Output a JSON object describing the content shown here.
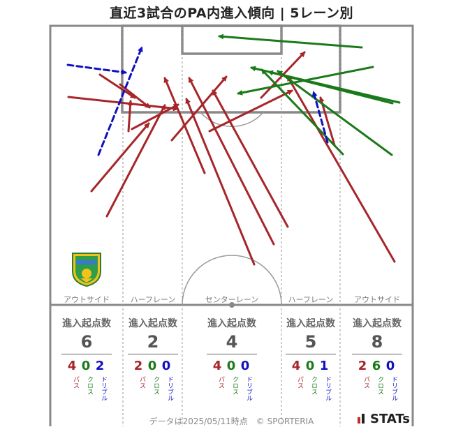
{
  "title": "直近3試合のPA内進入傾向 | 5レーン別",
  "lanes": [
    {
      "label": "アウトサイド",
      "head": "進入起点数",
      "total": "6",
      "pass": "4",
      "cross": "0",
      "dribble": "2"
    },
    {
      "label": "ハーフレーン",
      "head": "進入起点数",
      "total": "2",
      "pass": "2",
      "cross": "0",
      "dribble": "0"
    },
    {
      "label": "センターレーン",
      "head": "進入起点数",
      "total": "4",
      "pass": "4",
      "cross": "0",
      "dribble": "0"
    },
    {
      "label": "ハーフレーン",
      "head": "進入起点数",
      "total": "5",
      "pass": "4",
      "cross": "0",
      "dribble": "1"
    },
    {
      "label": "アウトサイド",
      "head": "進入起点数",
      "total": "8",
      "pass": "2",
      "cross": "6",
      "dribble": "0"
    }
  ],
  "breakdown_labels": {
    "pass": "パス",
    "cross": "クロス",
    "dribble": "ドリブル"
  },
  "colors": {
    "pass": "#a6262a",
    "cross": "#1a7a1a",
    "dribble": "#1010c0"
  },
  "footer": "データは2025/05/11時点　© SPORTERIA",
  "brand": "STATs",
  "chart_data": {
    "type": "scatter",
    "arrows": [
      {
        "kind": "pass",
        "from": [
          153,
          310
        ],
        "to": [
          236,
          151
        ]
      },
      {
        "kind": "pass",
        "from": [
          131,
          274
        ],
        "to": [
          213,
          177
        ]
      },
      {
        "kind": "pass",
        "from": [
          98,
          139
        ],
        "to": [
          254,
          156
        ]
      },
      {
        "kind": "pass",
        "from": [
          172,
          121
        ],
        "to": [
          214,
          154
        ]
      },
      {
        "kind": "pass",
        "from": [
          143,
          107
        ],
        "to": [
          193,
          140
        ]
      },
      {
        "kind": "pass",
        "from": [
          184,
          188
        ],
        "to": [
          187,
          145
        ]
      },
      {
        "kind": "pass",
        "from": [
          189,
          185
        ],
        "to": [
          255,
          150
        ]
      },
      {
        "kind": "pass",
        "from": [
          246,
          201
        ],
        "to": [
          324,
          110
        ]
      },
      {
        "kind": "pass",
        "from": [
          293,
          248
        ],
        "to": [
          236,
          112
        ]
      },
      {
        "kind": "pass",
        "from": [
          364,
          379
        ],
        "to": [
          267,
          142
        ]
      },
      {
        "kind": "pass",
        "from": [
          392,
          350
        ],
        "to": [
          271,
          112
        ]
      },
      {
        "kind": "pass",
        "from": [
          412,
          325
        ],
        "to": [
          305,
          130
        ]
      },
      {
        "kind": "pass",
        "from": [
          374,
          140
        ],
        "to": [
          436,
          75
        ]
      },
      {
        "kind": "pass",
        "from": [
          565,
          375
        ],
        "to": [
          412,
          110
        ]
      },
      {
        "kind": "pass",
        "from": [
          479,
          208
        ],
        "to": [
          459,
          140
        ]
      },
      {
        "kind": "pass",
        "from": [
          300,
          188
        ],
        "to": [
          418,
          130
        ]
      },
      {
        "kind": "cross",
        "from": [
          518,
          68
        ],
        "to": [
          314,
          52
        ]
      },
      {
        "kind": "cross",
        "from": [
          534,
          96
        ],
        "to": [
          341,
          134
        ]
      },
      {
        "kind": "cross",
        "from": [
          572,
          147
        ],
        "to": [
          360,
          97
        ]
      },
      {
        "kind": "cross",
        "from": [
          562,
          148
        ],
        "to": [
          385,
          103
        ]
      },
      {
        "kind": "cross",
        "from": [
          491,
          221
        ],
        "to": [
          375,
          100
        ]
      },
      {
        "kind": "cross",
        "from": [
          561,
          222
        ],
        "to": [
          398,
          102
        ]
      },
      {
        "kind": "dribble",
        "from": [
          97,
          93
        ],
        "to": [
          180,
          104
        ]
      },
      {
        "kind": "dribble",
        "from": [
          141,
          222
        ],
        "to": [
          203,
          68
        ]
      },
      {
        "kind": "dribble",
        "from": [
          469,
          204
        ],
        "to": [
          449,
          132
        ]
      }
    ]
  }
}
